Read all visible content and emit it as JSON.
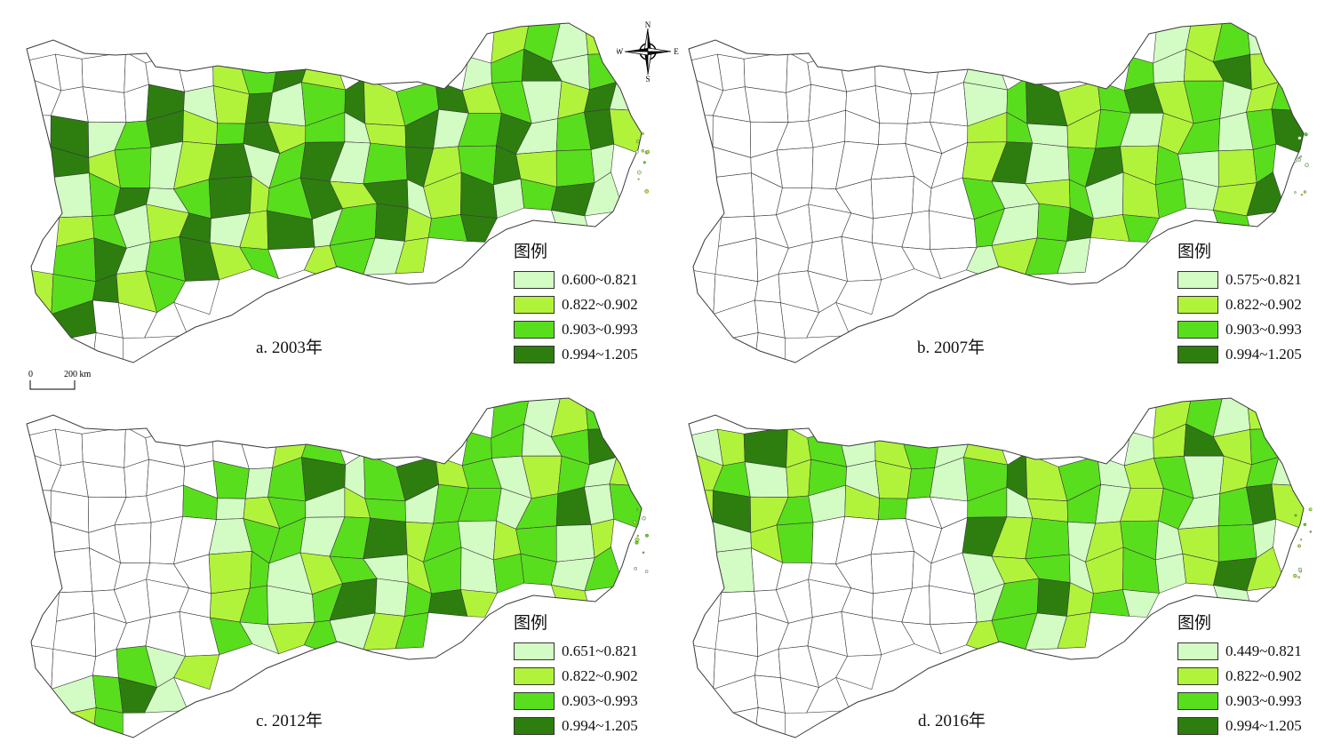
{
  "colors": {
    "class1": "#d3fcc4",
    "class2": "#b1f33a",
    "class3": "#58de1c",
    "class4": "#2d7e0f",
    "blank": "#ffffff",
    "border": "#3a3a3a"
  },
  "legend_title": "图例",
  "compass": {
    "n": "N",
    "s": "S",
    "e": "E",
    "w": "W"
  },
  "scalebar": {
    "zero": "0",
    "label": "200 km"
  },
  "panels": [
    {
      "caption": "a. 2003年",
      "legend": [
        "0.600~0.821",
        "0.822~0.902",
        "0.903~0.993",
        "0.994~1.205"
      ]
    },
    {
      "caption": "b. 2007年",
      "legend": [
        "0.575~0.821",
        "0.822~0.902",
        "0.903~0.993",
        "0.994~1.205"
      ]
    },
    {
      "caption": "c. 2012年",
      "legend": [
        "0.651~0.821",
        "0.822~0.902",
        "0.903~0.993",
        "0.994~1.205"
      ]
    },
    {
      "caption": "d. 2016年",
      "legend": [
        "0.449~0.821",
        "0.822~0.902",
        "0.903~0.993",
        "0.994~1.205"
      ]
    }
  ]
}
